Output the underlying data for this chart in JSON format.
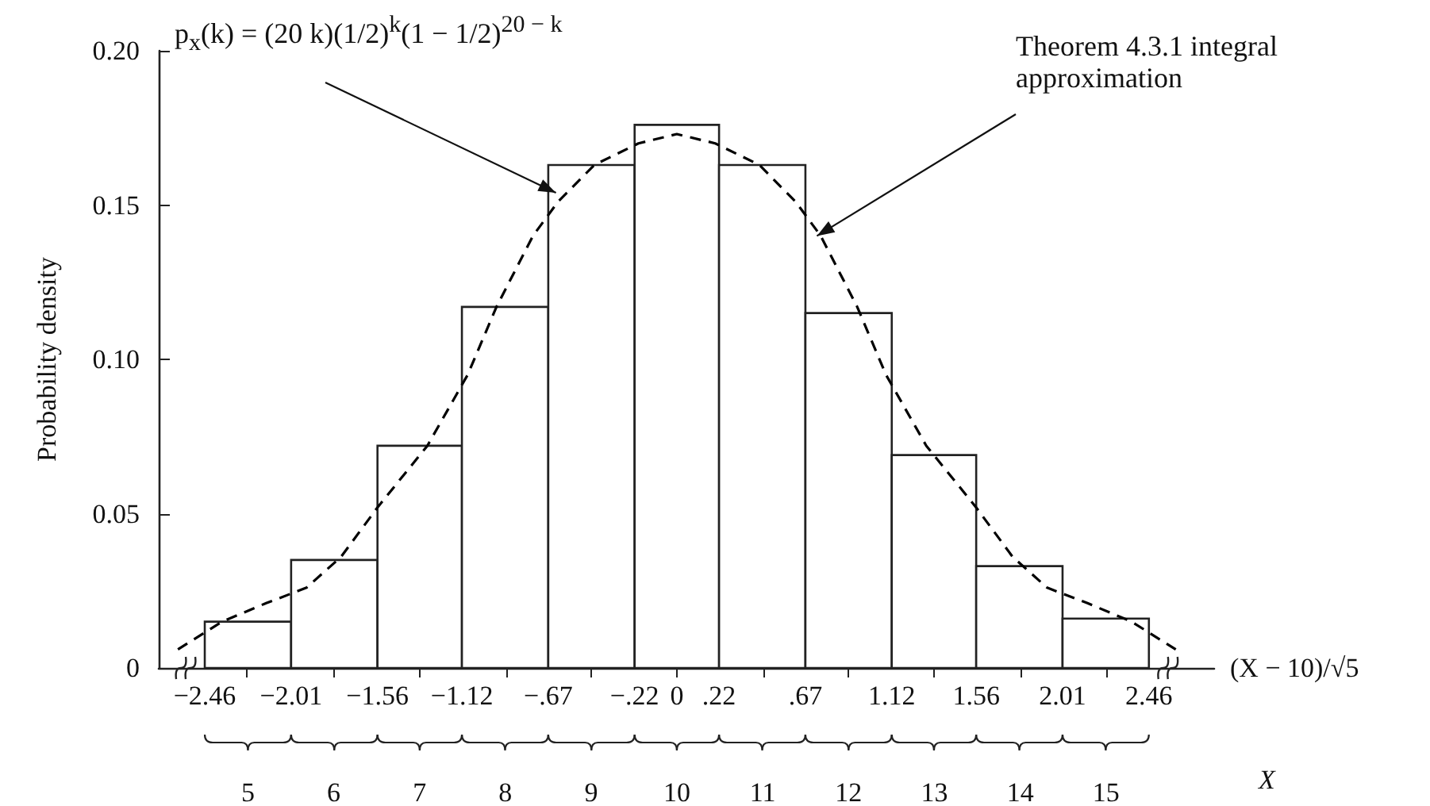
{
  "chart_data": {
    "type": "histogram",
    "xlabel": "(X − 10)/√5",
    "ylabel": "Probability density",
    "x2label": "X",
    "bins": [
      -2.46,
      -2.01,
      -1.56,
      -1.12,
      -0.67,
      -0.22,
      0.22,
      0.67,
      1.12,
      1.56,
      2.01,
      2.46
    ],
    "values": [
      0.015,
      0.035,
      0.072,
      0.117,
      0.163,
      0.176,
      0.163,
      0.115,
      0.069,
      0.033,
      0.016
    ],
    "color": "#ffffff",
    "series": [
      {
        "type": "line",
        "color": "#000000",
        "line_style": "dashed",
        "x": [
          -2.6,
          -2.37,
          -2.14,
          -1.93,
          -1.75,
          -1.56,
          -1.3,
          -1.09,
          -0.94,
          -0.75,
          -0.62,
          -0.43,
          -0.2,
          0,
          0.2,
          0.43,
          0.62,
          0.75,
          0.94,
          1.09,
          1.3,
          1.56,
          1.75,
          1.93,
          2.14,
          2.37,
          2.6
        ],
        "values": [
          0.006,
          0.015,
          0.021,
          0.026,
          0.036,
          0.052,
          0.072,
          0.095,
          0.117,
          0.14,
          0.151,
          0.163,
          0.17,
          0.173,
          0.17,
          0.163,
          0.151,
          0.14,
          0.117,
          0.095,
          0.072,
          0.052,
          0.036,
          0.026,
          0.021,
          0.015,
          0.006
        ]
      }
    ],
    "xlim": [
      -2.7,
      2.8
    ],
    "xticks": [
      {
        "value": -2.46,
        "label": "−2.46"
      },
      {
        "value": -2.01,
        "label": "−2.01"
      },
      {
        "value": -1.56,
        "label": "−1.56"
      },
      {
        "value": -1.12,
        "label": "−1.12"
      },
      {
        "value": -0.67,
        "label": "−.67"
      },
      {
        "value": -0.22,
        "label": "−.22"
      },
      {
        "value": 0.22,
        "label": ".22"
      },
      {
        "value": 0.67,
        "label": ".67"
      },
      {
        "value": 1.12,
        "label": "1.12"
      },
      {
        "value": 1.56,
        "label": "1.56"
      },
      {
        "value": 2.01,
        "label": "2.01"
      },
      {
        "value": 2.46,
        "label": "2.46"
      },
      {
        "value": -2.24,
        "label": null
      },
      {
        "value": -1.79,
        "label": null
      },
      {
        "value": -1.34,
        "label": null
      },
      {
        "value": -0.89,
        "label": null
      },
      {
        "value": -0.45,
        "label": null
      },
      {
        "value": 0,
        "label": "0"
      },
      {
        "value": 0.45,
        "label": null
      },
      {
        "value": 0.89,
        "label": null
      },
      {
        "value": 1.34,
        "label": null
      },
      {
        "value": 1.79,
        "label": null
      },
      {
        "value": 2.24,
        "label": null
      }
    ],
    "x2lim": [
      3.96,
      16.26
    ],
    "x2ticks": [
      5,
      6,
      7,
      8,
      9,
      10,
      11,
      12,
      13,
      14,
      15
    ],
    "ylim": [
      0,
      0.2
    ],
    "yticks": [
      0,
      0.05,
      {
        "value": 0.1,
        "label": "0.10"
      },
      0.15,
      {
        "value": 0.2,
        "label": "0.20"
      }
    ],
    "annotations": [
      {
        "text": "p$_{x}$(k) = (20 k)(1/2)$^{k}$(1 − 1/2)$^{20 − k}$",
        "x": -0.63,
        "y": 0.154
      },
      {
        "text": "Theorem 4.3.1 integral approximation",
        "x": 0.73,
        "y": 0.14
      }
    ]
  }
}
